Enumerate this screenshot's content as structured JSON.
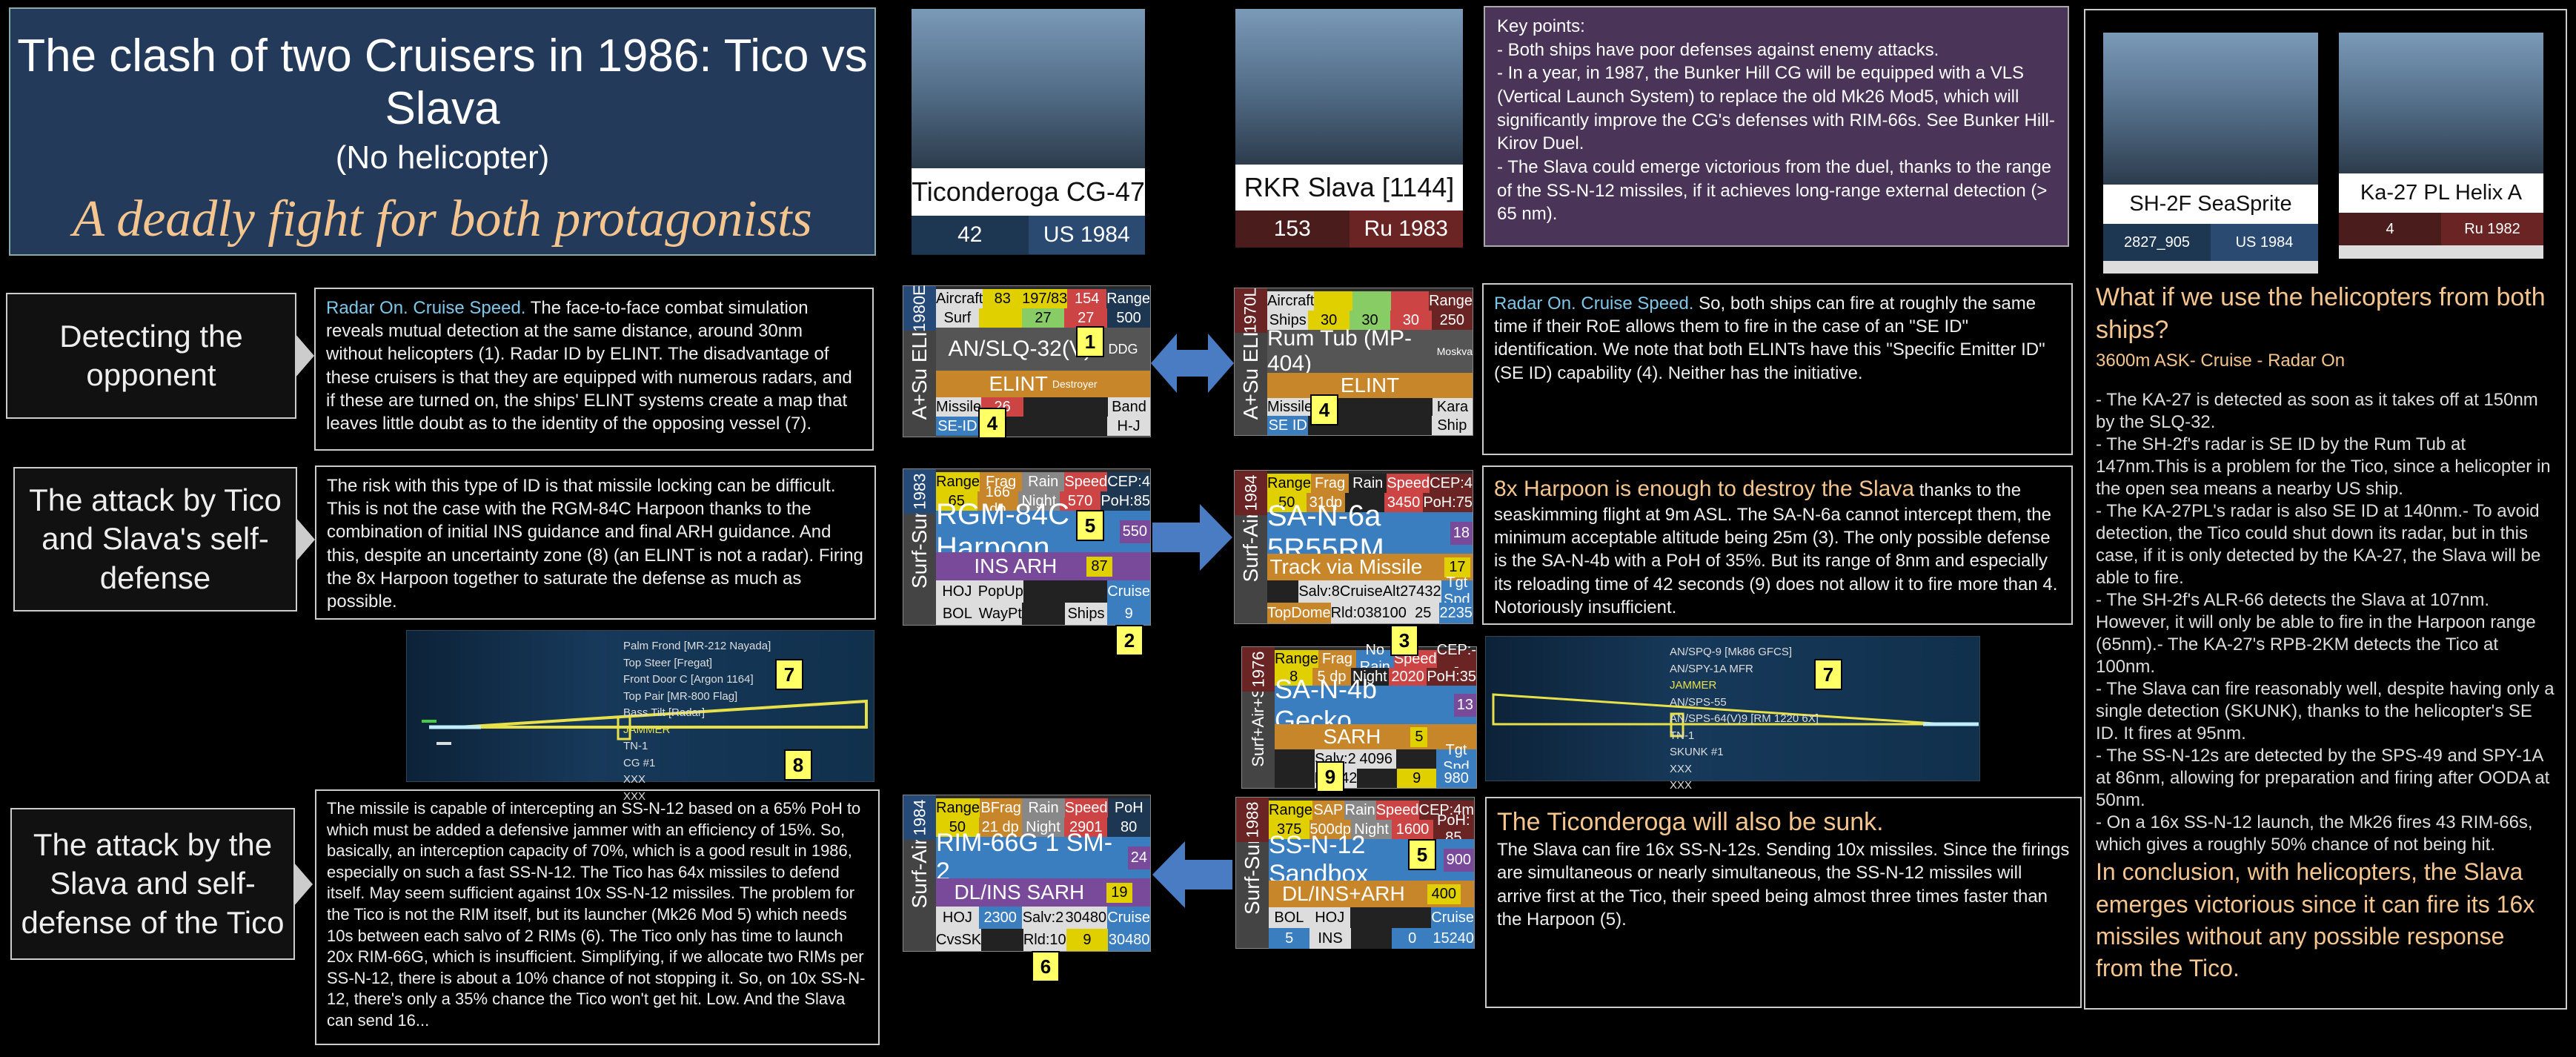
{
  "title": {
    "main": "The clash of two Cruisers in 1986: Tico vs Slava",
    "sub": "(No helicopter)",
    "slogan": "A deadly fight for both protagonists"
  },
  "ships": [
    {
      "name": "Ticonderoga CG-47",
      "stat1": "42",
      "stat2": "US 1984"
    },
    {
      "name": "RKR Slava [1144]",
      "stat1": "153",
      "stat2": "Ru 1983"
    }
  ],
  "key_points": {
    "heading": "Key points:",
    "items": [
      "- Both ships have poor defenses against enemy attacks.",
      "- In a year, in 1987, the Bunker Hill CG will be equipped with a VLS (Vertical Launch System) to replace the old Mk26 Mod5, which will significantly improve the CG's defenses with RIM-66s. See Bunker Hill-Kirov Duel.",
      "- The Slava could emerge victorious from the duel, thanks to the range of the SS-N-12 missiles, if it achieves long-range external detection (> 65 nm)."
    ]
  },
  "helicopters": [
    {
      "name": "SH-2F SeaSprite",
      "stat1": "2827_905",
      "stat2": "US 1984",
      "color": "#1d3652"
    },
    {
      "name": "Ka-27 PL Helix A",
      "stat1": "4",
      "stat2": "Ru 1982",
      "color": "#5a2424"
    }
  ],
  "side": {
    "question": "What if we use the helicopters from both ships?",
    "subtitle": "3600m ASK- Cruise - Radar On",
    "paragraphs": [
      "- The KA-27 is detected as soon as it takes off at 150nm by the SLQ-32.",
      "- The SH-2f's radar is SE ID by the Rum Tub at 147nm.This is a problem for the Tico, since a helicopter in the open sea means a nearby US ship.",
      "- The KA-27PL's radar is also SE ID at 140nm.- To avoid detection, the Tico could shut down its radar, but in this case, if it is only detected by the KA-27, the Slava will be able to fire.",
      "- The SH-2f's ALR-66 detects the Slava at 107nm. However, it will only be able to fire in the Harpoon range (65nm).- The KA-27's RPB-2KM detects the Tico at 100nm.",
      "- The Slava can fire reasonably well, despite having only a single detection (SKUNK), thanks to the helicopter's SE ID. It fires at 95nm.",
      "- The SS-N-12s are detected by the SPS-49 and SPY-1A at 86nm, allowing for preparation and firing after OODA at 50nm.",
      "- On a 16x SS-N-12 launch, the Mk26 fires 43 RIM-66s, which gives a roughly 50% chance of not being hit."
    ],
    "conclusion": "In conclusion, with helicopters, the Slava emerges victorious since it can fire its 16x missiles without any possible response from the Tico."
  },
  "sections": [
    {
      "label": "Detecting the opponent"
    },
    {
      "label": "The attack by Tico and Slava's self-defense"
    },
    {
      "label": "The attack by the Slava and self-defense of the Tico"
    }
  ],
  "texts": {
    "detect_left_hl": "Radar On. Cruise Speed.",
    "detect_left": " The face-to-face combat simulation reveals mutual detection at the same distance, around 30nm without helicopters (1). Radar ID by ELINT. The disadvantage of these cruisers is that they are equipped with numerous radars, and if these are turned on, the ships' ELINT systems create a map that leaves little doubt as to the identity of the opposing vessel (7).",
    "detect_right_hl": "Radar On. Cruise Speed.",
    "detect_right": " So, both ships can fire at roughly the same time if their RoE allows them to fire in the case of an \"SE ID\" identification. We note that both ELINTs have this \"Specific Emitter ID\" (SE ID) capability (4). Neither has the initiative.",
    "attack_left": "The risk with this type of ID is that missile locking can be difficult. This is not the case with the RGM-84C Harpoon thanks to the combination of initial INS guidance and final ARH guidance. And this, despite an uncertainty zone (8) (an ELINT is not a radar). Firing the 8x Harpoon together to saturate the defense as much as possible.",
    "attack_right_hl": "8x Harpoon is enough to destroy the Slava",
    "attack_right": " thanks to the seaskimming flight at 9m ASL. The SA-N-6a cannot intercept them, the minimum acceptable altitude being 25m (3). The only possible defense is the SA-N-4b with a PoH of 35%. But its range of 8nm and especially its reloading time of 42 seconds (9) does not allow it to fire more than 4. Notoriously insufficient.",
    "defense_left": "The missile is capable of intercepting an SS-N-12 based on a 65% PoH to which must be added a defensive jammer with an efficiency of 15%. So, basically, an interception capacity of 70%, which is a good result in 1986, especially on such a fast SS-N-12. The Tico has 64x missiles to defend itself. May seem sufficient against 10x SS-N-12 missiles. The problem for the Tico is not the RIM itself, but its launcher (Mk26 Mod 5) which needs 10s between each salvo of 2 RIMs (6). The Tico only has time to launch 20x RIM-66G, which is insufficient. Simplifying, if we allocate two RIMs per SS-N-12, there is about a 10% chance of not stopping it. So, on 10x SS-N-12, there's only a 35% chance the Tico won't get hit. Low. And the Slava can send 16...",
    "defense_right_hl": "The Ticonderoga will also be sunk.",
    "defense_right": "The Slava can fire 16x SS-N-12s. Sending 10x missiles. Since the firings are simultaneous or nearly simultaneous, the SS-N-12 missiles will arrive first at the Tico, their speed being almost three times faster than the Harpoon (5)."
  },
  "cards": {
    "slq": {
      "year": "1980E",
      "side": "A+Su ELINT",
      "r1": [
        "Aircraft",
        "83",
        "197/83",
        "154",
        "Range"
      ],
      "r2": [
        "Surf",
        "",
        "27",
        "27",
        "500"
      ],
      "name": "AN/SLQ-32(V)3",
      "tag": "DDG",
      "guid": "ELINT",
      "r3": [
        "Missile",
        "26",
        "",
        "",
        "Band"
      ],
      "r4": [
        "SE-ID",
        "",
        "",
        "",
        "H-J"
      ],
      "extra": "Destroyer"
    },
    "rum": {
      "year": "1970L",
      "side": "A+Su ELINT",
      "r1": [
        "Aircraft",
        "",
        "",
        "",
        "Range"
      ],
      "r2": [
        "Ships",
        "30",
        "30",
        "30",
        "250"
      ],
      "name": "Rum Tub (MP-404)",
      "tag": "Moskva",
      "guid": "ELINT",
      "r3": [
        "Missile",
        "",
        "",
        "",
        "Kara"
      ],
      "r4": [
        "SE ID",
        "",
        "",
        "",
        "Ship"
      ]
    },
    "harpoon": {
      "year": "1983",
      "side": "Surf-Surf",
      "r1": [
        "Range",
        "Frag",
        "Rain",
        "Speed",
        "CEP:4"
      ],
      "r2": [
        "65",
        "166 dp",
        "Night",
        "570",
        "PoH:85"
      ],
      "name": "RGM-84C Harpoon",
      "tag": "550",
      "guid": "INS ARH",
      "tag2": "87",
      "r3": [
        "HOJ",
        "PopUp",
        "",
        "",
        "Cruise"
      ],
      "r4": [
        "BOL",
        "WayPt",
        "",
        "Ships",
        "9"
      ]
    },
    "sa6": {
      "year": "1984",
      "side": "Surf-Air",
      "r1": [
        "Range",
        "Frag",
        "Rain",
        "Speed",
        "CEP:4"
      ],
      "r2": [
        "50",
        "31dp",
        "",
        "3450",
        "PoH:75"
      ],
      "name": "SA-N-6a 5R55RM",
      "tag": "18",
      "guid": "Track via Missile",
      "tag2": "17",
      "r3": [
        "",
        "Salv:8",
        "CruiseAlt",
        "27432",
        "Tgt Spd"
      ],
      "r4": [
        "TopDome",
        "Rld:0",
        "38100",
        "25",
        "2235"
      ]
    },
    "sa4": {
      "year": "1976",
      "side": "Surf+Air+Surf",
      "r1": [
        "Range",
        "Frag",
        "No Rain",
        "Speed",
        "CEP:--"
      ],
      "r2": [
        "8",
        "5 dp",
        "Night",
        "2020",
        "PoH:35"
      ],
      "name": "SA-N-4b Gecko",
      "tag": "13",
      "guid": "SARH",
      "tag2": "5",
      "r3": [
        "",
        "Salv:2",
        "4096",
        "",
        "Tgt Spd"
      ],
      "r4": [
        "",
        "Rld:42",
        "",
        "9",
        "980"
      ]
    },
    "rim": {
      "year": "1984",
      "side": "Surf-Air",
      "r1": [
        "Range",
        "BFrag",
        "Rain",
        "Speed",
        "PoH"
      ],
      "r2": [
        "50",
        "21 dp",
        "Night",
        "2901",
        "80"
      ],
      "name": "RIM-66G 1 SM-2",
      "tag": "24",
      "guid": "DL/INS SARH",
      "tag2": "19",
      "r3": [
        "HOJ",
        "2300",
        "Salv:2",
        "30480",
        "Cruise"
      ],
      "r4": [
        "CvsSK",
        "",
        "Rld:10",
        "9",
        "30480"
      ]
    },
    "ssn12": {
      "year": "1988",
      "side": "Surf-Surf",
      "r1": [
        "Range",
        "SAP",
        "Rain",
        "Speed",
        "CEP:4m"
      ],
      "r2": [
        "375",
        "500dp",
        "Night",
        "1600",
        "PoH: 85"
      ],
      "name": "SS-N-12 Sandbox",
      "tag": "900",
      "guid": "DL/INS+ARH",
      "tag2": "400",
      "r3": [
        "BOL",
        "HOJ",
        "",
        "",
        "Cruise"
      ],
      "r4": [
        "5",
        "INS",
        "",
        "0",
        "15240"
      ]
    }
  },
  "radar_left": [
    "Palm Frond [MR-212 Nayada]",
    "Top Steer [Fregat]",
    "Front Door C [Argon 1164]",
    "Top Pair [MR-800 Flag]",
    "Bass Tilt [Radar]",
    "JAMMER",
    "TN-1",
    "CG #1",
    "XXX",
    "XXX"
  ],
  "radar_right": [
    "AN/SPQ-9 [Mk86 GFCS]",
    "AN/SPY-1A MFR",
    "JAMMER",
    "AN/SPS-55",
    "AN/SPS-64(V)9 [RM 1220 6X]",
    "TN-1",
    "SKUNK #1",
    "XXX",
    "XXX"
  ],
  "markers": {
    "m1": "1",
    "m2": "2",
    "m3": "3",
    "m4": "4",
    "m4b": "4",
    "m5": "5",
    "m5b": "5",
    "m6": "6",
    "m7": "7",
    "m7b": "7",
    "m8": "8",
    "m9": "9"
  }
}
